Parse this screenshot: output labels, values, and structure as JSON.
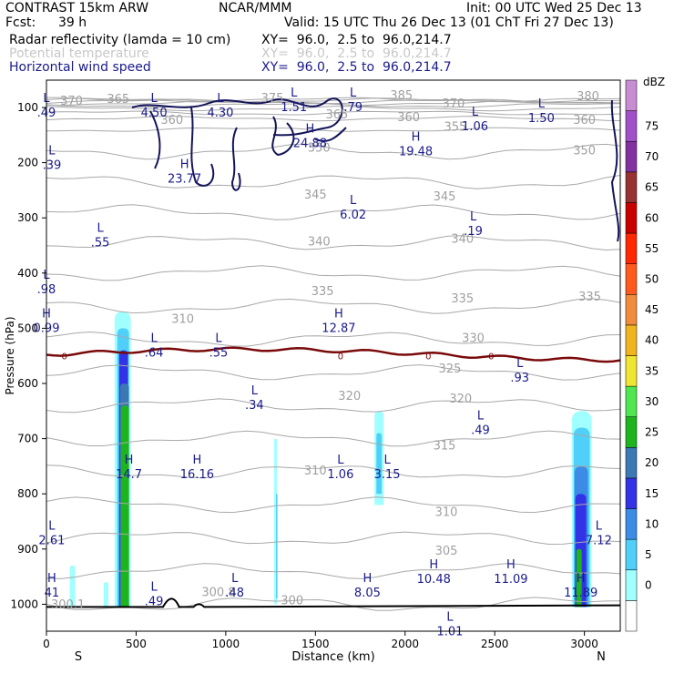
{
  "header": {
    "model": "CONTRAST 15km ARW",
    "center": "NCAR/MMM",
    "init": "Init: 00 UTC Wed 25 Dec 13",
    "fcst_label": "Fcst:",
    "fcst_value": "39 h",
    "valid": "Valid: 15 UTC Thu 26 Dec 13 (01 ChT Fri 27 Dec 13)"
  },
  "fields": [
    {
      "name": "Radar reflectivity (lamda = 10 cm)",
      "xy": "XY=  96.0,  2.5 to  96.0,214.7",
      "color": "#000000"
    },
    {
      "name": "Potential temperature",
      "xy": "XY=  96.0,  2.5 to  96.0,214.7",
      "color": "#c8c8c8"
    },
    {
      "name": "Horizontal wind speed",
      "xy": "XY=  96.0,  2.5 to  96.0,214.7",
      "color": "#1a1a8c"
    }
  ],
  "chart_data": {
    "type": "cross-section",
    "xlabel": "Distance (km)",
    "ylabel": "Pressure (hPa)",
    "x_ticks": [
      0,
      500,
      1000,
      1500,
      2000,
      2500,
      3000
    ],
    "y_ticks": [
      100,
      200,
      300,
      400,
      500,
      600,
      700,
      800,
      900,
      1000
    ],
    "xlim": [
      0,
      3200
    ],
    "ylim": [
      1045,
      70
    ],
    "bottom_labels": [
      "S",
      "N"
    ],
    "theta_labels": [
      {
        "x": 140,
        "p": 95,
        "text": "370"
      },
      {
        "x": 400,
        "p": 92,
        "text": "365"
      },
      {
        "x": 700,
        "p": 130,
        "text": "360"
      },
      {
        "x": 1260,
        "p": 90,
        "text": "375"
      },
      {
        "x": 1620,
        "p": 120,
        "text": "365"
      },
      {
        "x": 1980,
        "p": 85,
        "text": "385"
      },
      {
        "x": 2270,
        "p": 100,
        "text": "370"
      },
      {
        "x": 2020,
        "p": 125,
        "text": "360"
      },
      {
        "x": 2280,
        "p": 142,
        "text": "355"
      },
      {
        "x": 3020,
        "p": 87,
        "text": "380"
      },
      {
        "x": 3000,
        "p": 130,
        "text": "360"
      },
      {
        "x": 1520,
        "p": 180,
        "text": "350"
      },
      {
        "x": 3000,
        "p": 185,
        "text": "350"
      },
      {
        "x": 1500,
        "p": 265,
        "text": "345"
      },
      {
        "x": 2220,
        "p": 268,
        "text": "345"
      },
      {
        "x": 1520,
        "p": 350,
        "text": "340"
      },
      {
        "x": 2320,
        "p": 345,
        "text": "340"
      },
      {
        "x": 1540,
        "p": 440,
        "text": "335"
      },
      {
        "x": 2320,
        "p": 453,
        "text": "335"
      },
      {
        "x": 3030,
        "p": 450,
        "text": "335"
      },
      {
        "x": 2380,
        "p": 525,
        "text": "330"
      },
      {
        "x": 2250,
        "p": 580,
        "text": "325"
      },
      {
        "x": 1690,
        "p": 630,
        "text": "320"
      },
      {
        "x": 2310,
        "p": 635,
        "text": "320"
      },
      {
        "x": 2220,
        "p": 720,
        "text": "315"
      },
      {
        "x": 1500,
        "p": 765,
        "text": "310"
      },
      {
        "x": 2230,
        "p": 840,
        "text": "310"
      },
      {
        "x": 2230,
        "p": 910,
        "text": "305"
      },
      {
        "x": 760,
        "p": 490,
        "text": "310"
      },
      {
        "x": 960,
        "p": 985,
        "text": "300.8"
      },
      {
        "x": 1370,
        "p": 1000,
        "text": "300"
      },
      {
        "x": 120,
        "p": 1008,
        "text": "300.1"
      }
    ],
    "wind_extrema": [
      {
        "x": 0,
        "p": 90,
        "kind": "L",
        "value": ".49"
      },
      {
        "x": 600,
        "p": 90,
        "kind": "L",
        "value": "4.50"
      },
      {
        "x": 970,
        "p": 90,
        "kind": "L",
        "value": "4.30"
      },
      {
        "x": 1380,
        "p": 80,
        "kind": "L",
        "value": "1.51"
      },
      {
        "x": 1710,
        "p": 80,
        "kind": "L",
        "value": ".79"
      },
      {
        "x": 2390,
        "p": 115,
        "kind": "L",
        "value": "1.06"
      },
      {
        "x": 2760,
        "p": 100,
        "kind": "L",
        "value": "1.50"
      },
      {
        "x": 1470,
        "p": 145,
        "kind": "H",
        "value": "24.88"
      },
      {
        "x": 2060,
        "p": 160,
        "kind": "H",
        "value": "19.48"
      },
      {
        "x": 30,
        "p": 185,
        "kind": "L",
        "value": ".39"
      },
      {
        "x": 770,
        "p": 210,
        "kind": "H",
        "value": "23.77"
      },
      {
        "x": 1710,
        "p": 275,
        "kind": "L",
        "value": "6.02"
      },
      {
        "x": 2380,
        "p": 305,
        "kind": "L",
        "value": ".19"
      },
      {
        "x": 300,
        "p": 325,
        "kind": "L",
        "value": ".55"
      },
      {
        "x": 0,
        "p": 410,
        "kind": "L",
        "value": ".98"
      },
      {
        "x": 0,
        "p": 480,
        "kind": "H",
        "value": "0.99"
      },
      {
        "x": 1630,
        "p": 480,
        "kind": "H",
        "value": "12.87"
      },
      {
        "x": 600,
        "p": 525,
        "kind": "L",
        "value": ".64"
      },
      {
        "x": 960,
        "p": 525,
        "kind": "L",
        "value": ".55"
      },
      {
        "x": 2640,
        "p": 570,
        "kind": "L",
        "value": ".93"
      },
      {
        "x": 1160,
        "p": 620,
        "kind": "L",
        "value": ".34"
      },
      {
        "x": 2420,
        "p": 665,
        "kind": "L",
        "value": ".49"
      },
      {
        "x": 460,
        "p": 745,
        "kind": "H",
        "value": "14.7"
      },
      {
        "x": 840,
        "p": 745,
        "kind": "H",
        "value": "16.16"
      },
      {
        "x": 1640,
        "p": 745,
        "kind": "L",
        "value": "1.06"
      },
      {
        "x": 1900,
        "p": 745,
        "kind": "L",
        "value": "3.15"
      },
      {
        "x": 30,
        "p": 865,
        "kind": "L",
        "value": "2.61"
      },
      {
        "x": 3080,
        "p": 865,
        "kind": "L",
        "value": "7.12"
      },
      {
        "x": 30,
        "p": 960,
        "kind": "H",
        "value": "41"
      },
      {
        "x": 600,
        "p": 975,
        "kind": "L",
        "value": ".49"
      },
      {
        "x": 1050,
        "p": 960,
        "kind": "L",
        "value": ".48"
      },
      {
        "x": 1790,
        "p": 960,
        "kind": "H",
        "value": "8.05"
      },
      {
        "x": 2160,
        "p": 935,
        "kind": "H",
        "value": "10.48"
      },
      {
        "x": 2590,
        "p": 935,
        "kind": "H",
        "value": "11.09"
      },
      {
        "x": 2980,
        "p": 960,
        "kind": "H",
        "value": "11.89"
      },
      {
        "x": 2250,
        "p": 1030,
        "kind": "L",
        "value": "1.01"
      }
    ],
    "zero_isotherm_label": "0",
    "colorbar": {
      "title": "dBZ",
      "levels": [
        0,
        5,
        10,
        15,
        20,
        25,
        30,
        35,
        40,
        45,
        50,
        55,
        60,
        65,
        70,
        75
      ],
      "colors": [
        "#ffffff",
        "#a0ffff",
        "#50d0f8",
        "#3c8ce6",
        "#3232e6",
        "#3c78b4",
        "#1eb41e",
        "#50e650",
        "#f0e632",
        "#f0b41e",
        "#f08c3c",
        "#ff5a1e",
        "#ff2800",
        "#c80000",
        "#963232",
        "#8232a0",
        "#a050c8",
        "#c88cd2"
      ]
    }
  }
}
